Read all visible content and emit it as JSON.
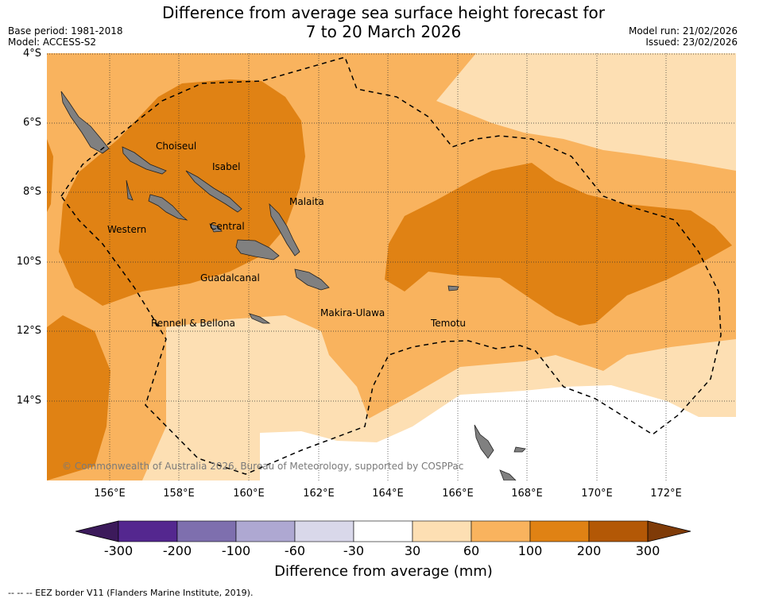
{
  "header": {
    "title_line1": "Difference from average sea surface height forecast for",
    "title_line2": "7 to 20 March 2026",
    "base_period": "Base period: 1981-2018",
    "model": "Model: ACCESS-S2",
    "model_run": "Model run: 21/02/2026",
    "issued": "Issued: 23/02/2026"
  },
  "map": {
    "lat_labels": [
      "4°S",
      "6°S",
      "8°S",
      "10°S",
      "12°S",
      "14°S"
    ],
    "lon_labels": [
      "156°E",
      "158°E",
      "160°E",
      "162°E",
      "164°E",
      "166°E",
      "168°E",
      "170°E",
      "172°E"
    ],
    "places": {
      "choiseul": "Choiseul",
      "isabel": "Isabel",
      "malaita": "Malaita",
      "western": "Western",
      "central": "Central",
      "guadalcanal": "Guadalcanal",
      "makira": "Makira-Ulawa",
      "temotu": "Temotu",
      "rennell": "Rennell & Bellona"
    },
    "copyright": "© Commonwealth of Australia 2026, Bureau of Meteorology, supported by COSPPac",
    "land_color": "#808080"
  },
  "colorbar": {
    "ticks": [
      "-300",
      "-200",
      "-100",
      "-60",
      "-30",
      "30",
      "60",
      "100",
      "200",
      "300"
    ],
    "colors": [
      "#3c1a5b",
      "#54278f",
      "#7e6fae",
      "#aea8d2",
      "#d9d8ea",
      "#ffffff",
      "#fddfb3",
      "#f9b35e",
      "#e08214",
      "#b35806",
      "#7f3b08"
    ],
    "title": "Difference from average (mm)"
  },
  "footnote": "--  --  -- EEZ border V11 (Flanders Marine Institute, 2019)."
}
